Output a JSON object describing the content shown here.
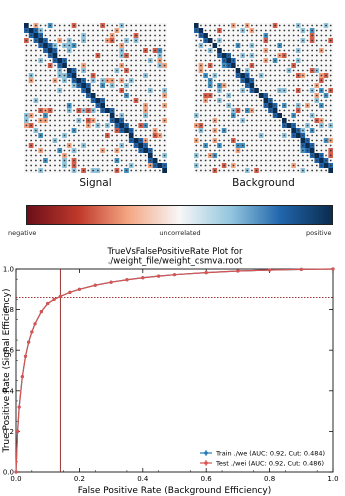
{
  "panels": {
    "left_label": "Signal",
    "right_label": "Background"
  },
  "colorbar": {
    "negative": "negative",
    "uncorrelated": "uncorrelated",
    "positive": "positive",
    "colors": [
      "#6b0f1a",
      "#c0392b",
      "#f4a582",
      "#f7f7f7",
      "#92c5de",
      "#2166ac",
      "#0b2c4f"
    ]
  },
  "chart_data": {
    "type": "line",
    "title": "TrueVsFalsePositiveRate Plot for ./weight_file/weight_csmva.root",
    "xlabel": "False Positive Rate (Background Efficiency)",
    "ylabel": "True Positive Rate (Signal Efficiency)",
    "xlim": [
      0.0,
      1.0
    ],
    "ylim": [
      0.0,
      1.0
    ],
    "xticks": [
      "0.0",
      "0.2",
      "0.4",
      "0.6",
      "0.8",
      "1.0"
    ],
    "yticks": [
      "0.0",
      "0.2",
      "0.4",
      "0.6",
      "0.8",
      "1.0"
    ],
    "cut_marker": {
      "x": 0.14,
      "y": 0.86
    },
    "legend_position": "bottom-right",
    "series": [
      {
        "name": "Train ./we (AUC: 0.92, Cut: 0.484)",
        "color": "#1f77b4",
        "x": [
          0.0,
          0.005,
          0.01,
          0.02,
          0.03,
          0.04,
          0.05,
          0.06,
          0.08,
          0.1,
          0.12,
          0.14,
          0.17,
          0.2,
          0.25,
          0.3,
          0.35,
          0.4,
          0.45,
          0.5,
          0.6,
          0.7,
          0.8,
          0.9,
          1.0
        ],
        "y": [
          0.0,
          0.2,
          0.32,
          0.47,
          0.57,
          0.64,
          0.69,
          0.73,
          0.79,
          0.83,
          0.85,
          0.865,
          0.885,
          0.9,
          0.92,
          0.935,
          0.947,
          0.957,
          0.965,
          0.972,
          0.982,
          0.99,
          0.995,
          0.998,
          1.0
        ]
      },
      {
        "name": "Test ./wei (AUC: 0.92, Cut: 0.486)",
        "color": "#d9534f",
        "x": [
          0.0,
          0.005,
          0.01,
          0.02,
          0.03,
          0.04,
          0.05,
          0.06,
          0.08,
          0.1,
          0.12,
          0.14,
          0.17,
          0.2,
          0.25,
          0.3,
          0.35,
          0.4,
          0.45,
          0.5,
          0.6,
          0.7,
          0.8,
          0.9,
          1.0
        ],
        "y": [
          0.0,
          0.2,
          0.32,
          0.47,
          0.57,
          0.64,
          0.69,
          0.73,
          0.79,
          0.83,
          0.85,
          0.865,
          0.885,
          0.9,
          0.92,
          0.935,
          0.947,
          0.957,
          0.965,
          0.972,
          0.982,
          0.99,
          0.995,
          0.998,
          1.0
        ]
      }
    ]
  }
}
